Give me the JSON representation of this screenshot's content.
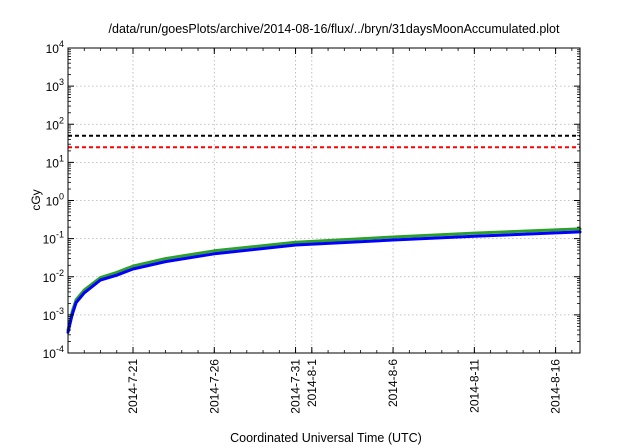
{
  "chart_data": {
    "type": "line",
    "title": "/data/run/goesPlots/archive/2014-08-16/flux/../bryn/31daysMoonAccumulated.plot",
    "xlabel": "Coordinated Universal Time (UTC)",
    "ylabel": "cGy",
    "x_range": [
      "2014-07-17",
      "2014-08-17.5"
    ],
    "yscale": "log",
    "ylim": [
      0.0001,
      10000
    ],
    "y_ticks": [
      {
        "value": 0.0001,
        "base": "10",
        "exp": "-4"
      },
      {
        "value": 0.001,
        "base": "10",
        "exp": "-3"
      },
      {
        "value": 0.01,
        "base": "10",
        "exp": "-2"
      },
      {
        "value": 0.1,
        "base": "10",
        "exp": "-1"
      },
      {
        "value": 1,
        "base": "10",
        "exp": "0"
      },
      {
        "value": 10,
        "base": "10",
        "exp": "1"
      },
      {
        "value": 100,
        "base": "10",
        "exp": "2"
      },
      {
        "value": 1000,
        "base": "10",
        "exp": "3"
      },
      {
        "value": 10000,
        "base": "10",
        "exp": "4"
      }
    ],
    "x_ticks": [
      {
        "date": "2014-07-21",
        "label": "2014-7-21"
      },
      {
        "date": "2014-07-26",
        "label": "2014-7-26"
      },
      {
        "date": "2014-07-31",
        "label": "2014-7-31"
      },
      {
        "date": "2014-08-01",
        "label": "2014-8-1"
      },
      {
        "date": "2014-08-06",
        "label": "2014-8-6"
      },
      {
        "date": "2014-08-11",
        "label": "2014-8-11"
      },
      {
        "date": "2014-08-16",
        "label": "2014-8-16"
      }
    ],
    "grid": true,
    "reference_lines": [
      {
        "value": 50,
        "color": "#000000",
        "style": "dashed"
      },
      {
        "value": 25,
        "color": "#ff0000",
        "style": "dashed"
      }
    ],
    "series": [
      {
        "color": "#2ca02c",
        "x": [
          "2014-07-17",
          "2014-07-17.25",
          "2014-07-17.5",
          "2014-07-18",
          "2014-07-19",
          "2014-07-20",
          "2014-07-21",
          "2014-07-23",
          "2014-07-26",
          "2014-07-31",
          "2014-08-06",
          "2014-08-11",
          "2014-08-17.5"
        ],
        "y": [
          0.0004,
          0.0012,
          0.0025,
          0.0045,
          0.0095,
          0.013,
          0.019,
          0.03,
          0.048,
          0.08,
          0.11,
          0.14,
          0.18
        ]
      },
      {
        "color": "#0000ff",
        "x": [
          "2014-07-17",
          "2014-07-17.25",
          "2014-07-17.5",
          "2014-07-18",
          "2014-07-19",
          "2014-07-20",
          "2014-07-21",
          "2014-07-23",
          "2014-07-26",
          "2014-07-31",
          "2014-08-06",
          "2014-08-11",
          "2014-08-17.5"
        ],
        "y": [
          0.00035,
          0.001,
          0.0021,
          0.0038,
          0.0082,
          0.011,
          0.016,
          0.025,
          0.04,
          0.068,
          0.092,
          0.115,
          0.15
        ]
      }
    ]
  }
}
